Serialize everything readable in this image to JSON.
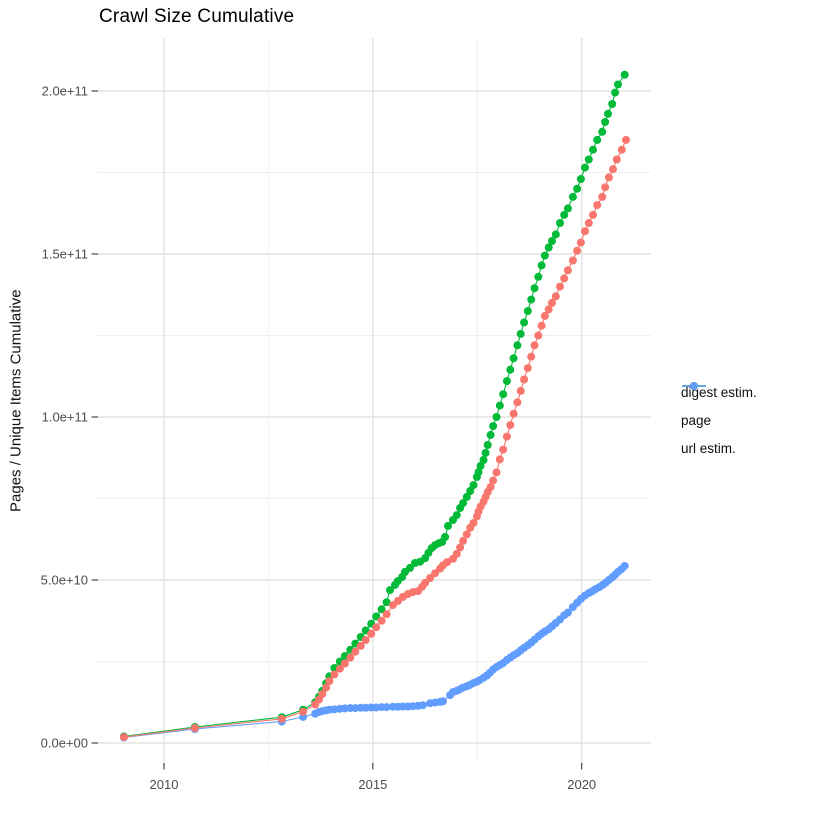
{
  "title": "Crawl Size Cumulative",
  "chart_data": {
    "type": "scatter",
    "title": "Crawl Size Cumulative",
    "xlabel": "",
    "ylabel": "Pages / Unique Items Cumulative",
    "x_unit": "year",
    "grid": true,
    "legend_position": "right",
    "xlim": [
      2008.45,
      2021.66
    ],
    "ylim": [
      -8500000000.0,
      215000000000.0
    ],
    "x_ticks": [
      2010,
      2015,
      2020
    ],
    "x_tick_labels": [
      "2010",
      "2015",
      "2020"
    ],
    "x_minor_ticks": [
      2012.5,
      2017.5
    ],
    "y_ticks": [
      0,
      50000000000.0,
      100000000000.0,
      150000000000.0,
      200000000000.0
    ],
    "y_tick_labels": [
      "0.0e+00",
      "5.0e+10",
      "1.0e+11",
      "1.5e+11",
      "2.0e+11"
    ],
    "y_minor_ticks": [
      25000000000.0,
      75000000000.0,
      125000000000.0,
      175000000000.0
    ],
    "draw_order": [
      "page",
      "url estim.",
      "digest estim."
    ],
    "series": [
      {
        "name": "digest estim.",
        "color": "#F8766D",
        "points": [
          [
            2009.04,
            1800000000.0
          ],
          [
            2010.74,
            4600000000.0
          ],
          [
            2012.82,
            7400000000.0
          ],
          [
            2013.33,
            9600000000.0
          ],
          [
            2013.62,
            11800000000.0
          ],
          [
            2013.71,
            13300000000.0
          ],
          [
            2013.79,
            15000000000.0
          ],
          [
            2013.88,
            17000000000.0
          ],
          [
            2013.96,
            19000000000.0
          ],
          [
            2014.08,
            21000000000.0
          ],
          [
            2014.21,
            22800000000.0
          ],
          [
            2014.33,
            24400000000.0
          ],
          [
            2014.46,
            26200000000.0
          ],
          [
            2014.58,
            28000000000.0
          ],
          [
            2014.71,
            29800000000.0
          ],
          [
            2014.83,
            31600000000.0
          ],
          [
            2014.96,
            33500000000.0
          ],
          [
            2015.08,
            35500000000.0
          ],
          [
            2015.21,
            37500000000.0
          ],
          [
            2015.33,
            39500000000.0
          ],
          [
            2015.48,
            42300000000.0
          ],
          [
            2015.6,
            43600000000.0
          ],
          [
            2015.72,
            44800000000.0
          ],
          [
            2015.84,
            45700000000.0
          ],
          [
            2015.96,
            46300000000.0
          ],
          [
            2016.08,
            46600000000.0
          ],
          [
            2016.18,
            47900000000.0
          ],
          [
            2016.25,
            49100000000.0
          ],
          [
            2016.37,
            50600000000.0
          ],
          [
            2016.49,
            52100000000.0
          ],
          [
            2016.61,
            53500000000.0
          ],
          [
            2016.68,
            54500000000.0
          ],
          [
            2016.78,
            55500000000.0
          ],
          [
            2016.92,
            56500000000.0
          ],
          [
            2017.01,
            58000000000.0
          ],
          [
            2017.09,
            60000000000.0
          ],
          [
            2017.16,
            62000000000.0
          ],
          [
            2017.25,
            64000000000.0
          ],
          [
            2017.33,
            66000000000.0
          ],
          [
            2017.41,
            67500000000.0
          ],
          [
            2017.49,
            69500000000.0
          ],
          [
            2017.53,
            71000000000.0
          ],
          [
            2017.58,
            72500000000.0
          ],
          [
            2017.65,
            74000000000.0
          ],
          [
            2017.7,
            75500000000.0
          ],
          [
            2017.75,
            77000000000.0
          ],
          [
            2017.82,
            78500000000.0
          ],
          [
            2017.88,
            80500000000.0
          ],
          [
            2017.96,
            83000000000.0
          ],
          [
            2018.04,
            87000000000.0
          ],
          [
            2018.12,
            90000000000.0
          ],
          [
            2018.21,
            94000000000.0
          ],
          [
            2018.29,
            97500000000.0
          ],
          [
            2018.37,
            101000000000.0
          ],
          [
            2018.46,
            104500000000.0
          ],
          [
            2018.54,
            108000000000.0
          ],
          [
            2018.62,
            111500000000.0
          ],
          [
            2018.71,
            115000000000.0
          ],
          [
            2018.79,
            118500000000.0
          ],
          [
            2018.87,
            122000000000.0
          ],
          [
            2018.96,
            125000000000.0
          ],
          [
            2019.04,
            128000000000.0
          ],
          [
            2019.12,
            131000000000.0
          ],
          [
            2019.21,
            133000000000.0
          ],
          [
            2019.29,
            135000000000.0
          ],
          [
            2019.38,
            137000000000.0
          ],
          [
            2019.48,
            140000000000.0
          ],
          [
            2019.58,
            142500000000.0
          ],
          [
            2019.67,
            145000000000.0
          ],
          [
            2019.79,
            148000000000.0
          ],
          [
            2019.89,
            151000000000.0
          ],
          [
            2019.98,
            153500000000.0
          ],
          [
            2020.08,
            157000000000.0
          ],
          [
            2020.17,
            159500000000.0
          ],
          [
            2020.27,
            162000000000.0
          ],
          [
            2020.37,
            165000000000.0
          ],
          [
            2020.49,
            167500000000.0
          ],
          [
            2020.56,
            170500000000.0
          ],
          [
            2020.65,
            173500000000.0
          ],
          [
            2020.75,
            176000000000.0
          ],
          [
            2020.84,
            179000000000.0
          ],
          [
            2020.96,
            182000000000.0
          ],
          [
            2021.06,
            185000000000.0
          ]
        ]
      },
      {
        "name": "page",
        "color": "#00BA38",
        "points": [
          [
            2009.04,
            2000000000.0
          ],
          [
            2010.74,
            4900000000.0
          ],
          [
            2012.82,
            7900000000.0
          ],
          [
            2013.33,
            10200000000.0
          ],
          [
            2013.62,
            12500000000.0
          ],
          [
            2013.71,
            14200000000.0
          ],
          [
            2013.79,
            16000000000.0
          ],
          [
            2013.88,
            18300000000.0
          ],
          [
            2013.96,
            20500000000.0
          ],
          [
            2014.08,
            23000000000.0
          ],
          [
            2014.21,
            25000000000.0
          ],
          [
            2014.33,
            26700000000.0
          ],
          [
            2014.46,
            28600000000.0
          ],
          [
            2014.58,
            30500000000.0
          ],
          [
            2014.71,
            32500000000.0
          ],
          [
            2014.83,
            34500000000.0
          ],
          [
            2014.96,
            36600000000.0
          ],
          [
            2015.08,
            38800000000.0
          ],
          [
            2015.21,
            41000000000.0
          ],
          [
            2015.33,
            43200000000.0
          ],
          [
            2015.41,
            46900000000.0
          ],
          [
            2015.53,
            48500000000.0
          ],
          [
            2015.6,
            49700000000.0
          ],
          [
            2015.7,
            50900000000.0
          ],
          [
            2015.77,
            52500000000.0
          ],
          [
            2015.89,
            53700000000.0
          ],
          [
            2016.01,
            55200000000.0
          ],
          [
            2016.13,
            55600000000.0
          ],
          [
            2016.25,
            56700000000.0
          ],
          [
            2016.33,
            58300000000.0
          ],
          [
            2016.41,
            59800000000.0
          ],
          [
            2016.49,
            60700000000.0
          ],
          [
            2016.58,
            61300000000.0
          ],
          [
            2016.66,
            61700000000.0
          ],
          [
            2016.73,
            63200000000.0
          ],
          [
            2016.8,
            66600000000.0
          ],
          [
            2016.92,
            68400000000.0
          ],
          [
            2017.01,
            69900000000.0
          ],
          [
            2017.09,
            72100000000.0
          ],
          [
            2017.16,
            73600000000.0
          ],
          [
            2017.25,
            75500000000.0
          ],
          [
            2017.33,
            77300000000.0
          ],
          [
            2017.41,
            79100000000.0
          ],
          [
            2017.49,
            81600000000.0
          ],
          [
            2017.53,
            83100000000.0
          ],
          [
            2017.58,
            85000000000.0
          ],
          [
            2017.65,
            86800000000.0
          ],
          [
            2017.7,
            89000000000.0
          ],
          [
            2017.75,
            91400000000.0
          ],
          [
            2017.82,
            94500000000.0
          ],
          [
            2017.88,
            97200000000.0
          ],
          [
            2017.96,
            100000000000.0
          ],
          [
            2018.04,
            103500000000.0
          ],
          [
            2018.12,
            107000000000.0
          ],
          [
            2018.21,
            111000000000.0
          ],
          [
            2018.29,
            114500000000.0
          ],
          [
            2018.37,
            118000000000.0
          ],
          [
            2018.46,
            122000000000.0
          ],
          [
            2018.54,
            125500000000.0
          ],
          [
            2018.62,
            129000000000.0
          ],
          [
            2018.71,
            132500000000.0
          ],
          [
            2018.79,
            136000000000.0
          ],
          [
            2018.87,
            139500000000.0
          ],
          [
            2018.96,
            143000000000.0
          ],
          [
            2019.04,
            146500000000.0
          ],
          [
            2019.12,
            149500000000.0
          ],
          [
            2019.21,
            152000000000.0
          ],
          [
            2019.29,
            154000000000.0
          ],
          [
            2019.38,
            156000000000.0
          ],
          [
            2019.48,
            159500000000.0
          ],
          [
            2019.58,
            162000000000.0
          ],
          [
            2019.67,
            164000000000.0
          ],
          [
            2019.79,
            167500000000.0
          ],
          [
            2019.89,
            170000000000.0
          ],
          [
            2019.98,
            173000000000.0
          ],
          [
            2020.08,
            176500000000.0
          ],
          [
            2020.17,
            179000000000.0
          ],
          [
            2020.27,
            182000000000.0
          ],
          [
            2020.37,
            185000000000.0
          ],
          [
            2020.49,
            187500000000.0
          ],
          [
            2020.56,
            190500000000.0
          ],
          [
            2020.63,
            193000000000.0
          ],
          [
            2020.73,
            196000000000.0
          ],
          [
            2020.8,
            199500000000.0
          ],
          [
            2020.87,
            202000000000.0
          ],
          [
            2021.03,
            205000000000.0
          ]
        ]
      },
      {
        "name": "url estim.",
        "color": "#619CFF",
        "points": [
          [
            2009.04,
            1700000000.0
          ],
          [
            2010.74,
            4300000000.0
          ],
          [
            2012.82,
            6600000000.0
          ],
          [
            2013.33,
            8000000000.0
          ],
          [
            2013.62,
            9000000000.0
          ],
          [
            2013.71,
            9500000000.0
          ],
          [
            2013.79,
            9800000000.0
          ],
          [
            2013.88,
            10000000000.0
          ],
          [
            2013.96,
            10200000000.0
          ],
          [
            2014.08,
            10300000000.0
          ],
          [
            2014.21,
            10500000000.0
          ],
          [
            2014.33,
            10600000000.0
          ],
          [
            2014.46,
            10700000000.0
          ],
          [
            2014.58,
            10700000000.0
          ],
          [
            2014.71,
            10800000000.0
          ],
          [
            2014.83,
            10800000000.0
          ],
          [
            2014.96,
            10900000000.0
          ],
          [
            2015.08,
            10900000000.0
          ],
          [
            2015.21,
            11000000000.0
          ],
          [
            2015.33,
            11000000000.0
          ],
          [
            2015.48,
            11100000000.0
          ],
          [
            2015.6,
            11100000000.0
          ],
          [
            2015.72,
            11200000000.0
          ],
          [
            2015.84,
            11200000000.0
          ],
          [
            2015.96,
            11300000000.0
          ],
          [
            2016.08,
            11400000000.0
          ],
          [
            2016.2,
            11600000000.0
          ],
          [
            2016.37,
            12200000000.0
          ],
          [
            2016.49,
            12400000000.0
          ],
          [
            2016.61,
            12600000000.0
          ],
          [
            2016.68,
            12800000000.0
          ],
          [
            2016.85,
            14700000000.0
          ],
          [
            2016.92,
            15600000000.0
          ],
          [
            2017.01,
            16000000000.0
          ],
          [
            2017.09,
            16500000000.0
          ],
          [
            2017.16,
            17000000000.0
          ],
          [
            2017.25,
            17400000000.0
          ],
          [
            2017.32,
            17800000000.0
          ],
          [
            2017.41,
            18400000000.0
          ],
          [
            2017.49,
            18800000000.0
          ],
          [
            2017.56,
            19300000000.0
          ],
          [
            2017.65,
            20000000000.0
          ],
          [
            2017.73,
            20700000000.0
          ],
          [
            2017.8,
            21500000000.0
          ],
          [
            2017.88,
            22500000000.0
          ],
          [
            2017.96,
            23300000000.0
          ],
          [
            2018.04,
            23900000000.0
          ],
          [
            2018.12,
            24500000000.0
          ],
          [
            2018.21,
            25500000000.0
          ],
          [
            2018.29,
            26200000000.0
          ],
          [
            2018.37,
            26900000000.0
          ],
          [
            2018.46,
            27600000000.0
          ],
          [
            2018.54,
            28400000000.0
          ],
          [
            2018.62,
            29200000000.0
          ],
          [
            2018.71,
            30000000000.0
          ],
          [
            2018.79,
            30800000000.0
          ],
          [
            2018.87,
            31700000000.0
          ],
          [
            2018.96,
            32700000000.0
          ],
          [
            2019.04,
            33500000000.0
          ],
          [
            2019.12,
            34200000000.0
          ],
          [
            2019.21,
            34900000000.0
          ],
          [
            2019.29,
            35800000000.0
          ],
          [
            2019.38,
            36800000000.0
          ],
          [
            2019.48,
            37900000000.0
          ],
          [
            2019.58,
            39200000000.0
          ],
          [
            2019.67,
            40000000000.0
          ],
          [
            2019.79,
            41700000000.0
          ],
          [
            2019.89,
            43000000000.0
          ],
          [
            2019.98,
            44200000000.0
          ],
          [
            2020.08,
            45200000000.0
          ],
          [
            2020.17,
            46000000000.0
          ],
          [
            2020.25,
            46500000000.0
          ],
          [
            2020.33,
            47200000000.0
          ],
          [
            2020.42,
            47800000000.0
          ],
          [
            2020.5,
            48500000000.0
          ],
          [
            2020.58,
            49200000000.0
          ],
          [
            2020.65,
            50000000000.0
          ],
          [
            2020.73,
            50800000000.0
          ],
          [
            2020.8,
            51600000000.0
          ],
          [
            2020.87,
            52500000000.0
          ],
          [
            2020.95,
            53300000000.0
          ],
          [
            2021.03,
            54300000000.0
          ]
        ]
      }
    ]
  },
  "legend": {
    "position": "right",
    "items": [
      {
        "label": "digest estim."
      },
      {
        "label": "page"
      },
      {
        "label": "url estim."
      }
    ]
  },
  "style": {
    "grid_major_color": "#e3e3e3",
    "grid_minor_color": "#efefef",
    "tick_color": "#333333",
    "tick_label_color": "#4d4d4d",
    "background": "#ffffff"
  }
}
